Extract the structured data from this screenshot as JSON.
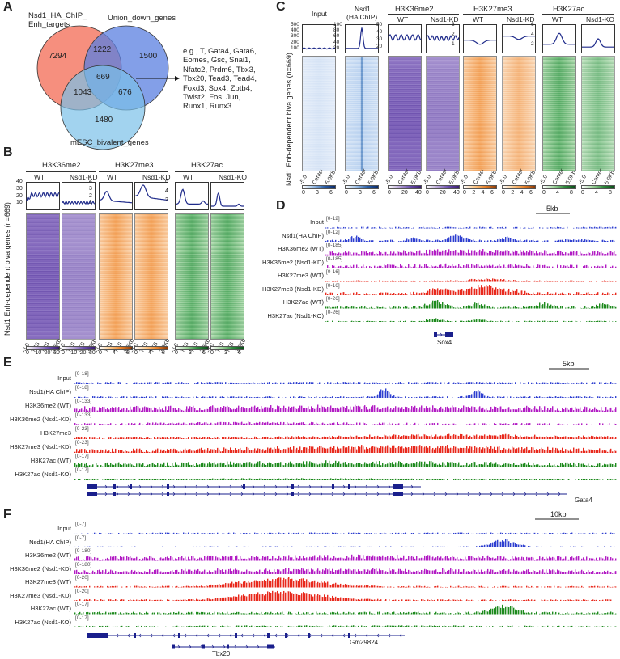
{
  "panels": {
    "A": {
      "letter": "A",
      "set_labels": [
        "Nsd1_HA_ChIP_\nEnh_targets",
        "Union_down_genes",
        "mESC_bivalent_genes"
      ],
      "counts": [
        "7294",
        "1222",
        "1500",
        "669",
        "1043",
        "676",
        "1480"
      ],
      "genes_text": "e.g., T, Gata4, Gata6,\nEomes, Gsc, Snai1,\nNfatc2, Prdm6, Tbx3,\nTbx20, Tead3, Tead4,\nFoxd3, Sox4, Zbtb4,\nTwist2, Fos, Jun,\nRunx1, Runx3"
    },
    "B": {
      "letter": "B",
      "ylabel": "Nsd1 Enh-dependent biva genes (n=669)",
      "groups": [
        {
          "title": "H3K36me2",
          "conds": [
            "WT",
            "Nsd1-KD"
          ],
          "color": "purple",
          "yticks": [
            "40",
            "30",
            "20",
            "10"
          ],
          "cbar": [
            "0",
            "10",
            "20",
            "30"
          ]
        },
        {
          "title": "H3K27me3",
          "conds": [
            "WT",
            "Nsd1-KD"
          ],
          "color": "orange",
          "yticks": [
            "4",
            "3",
            "2",
            "1"
          ],
          "cbar": [
            "0",
            "4",
            "8"
          ]
        },
        {
          "title": "H3K27ac",
          "conds": [
            "WT",
            "Nsd1-KO"
          ],
          "color": "green",
          "yticks": [
            "6",
            "4",
            "2"
          ],
          "cbar": [
            "0",
            "3",
            "6"
          ]
        }
      ],
      "xticks": [
        "-3.0",
        "TSS",
        "TES",
        "3.0Kb"
      ]
    },
    "C": {
      "letter": "C",
      "ylabel": "Nsd1 Enh-dependent biva genes (n=669)",
      "columns": [
        {
          "title": "Input",
          "sub": "",
          "color": "input",
          "yticks": [
            "500",
            "400",
            "300",
            "200",
            "100"
          ],
          "cbar": [
            "0",
            "3",
            "6"
          ]
        },
        {
          "title": "Nsd1",
          "sub": "(HA ChIP)",
          "color": "blue",
          "yticks": [
            "100",
            "80",
            "60",
            "40",
            "20"
          ],
          "cbar": [
            "0",
            "3",
            "6"
          ]
        },
        {
          "title": "WT",
          "sub": "",
          "color": "purple",
          "yticks": [
            "50",
            "40",
            "30",
            "20"
          ],
          "cbar": [
            "0",
            "20",
            "40"
          ]
        },
        {
          "title": "Nsd1-KD",
          "sub": "",
          "color": "purple",
          "yticks": [
            "",
            "",
            "",
            ""
          ],
          "cbar": [
            "0",
            "20",
            "40"
          ]
        },
        {
          "title": "WT",
          "sub": "",
          "color": "orange",
          "yticks": [
            "3",
            "2",
            "1"
          ],
          "cbar": [
            "0",
            "2",
            "4",
            "6"
          ]
        },
        {
          "title": "Nsd1-KD",
          "sub": "",
          "color": "orange",
          "yticks": [
            "",
            "",
            ""
          ],
          "cbar": [
            "0",
            "2",
            "4",
            "6"
          ]
        },
        {
          "title": "WT",
          "sub": "",
          "color": "green",
          "yticks": [
            "6",
            "4",
            "2"
          ],
          "cbar": [
            "0",
            "4",
            "8"
          ]
        },
        {
          "title": "Nsd1-KO",
          "sub": "",
          "color": "green",
          "yticks": [
            "",
            "",
            ""
          ],
          "cbar": [
            "0",
            "4",
            "8"
          ]
        }
      ],
      "group_titles": [
        "H3K36me2",
        "H3K27me3",
        "H3K27ac"
      ],
      "xticks": [
        "-5.0",
        "Center",
        "5.0Kb"
      ]
    },
    "D": {
      "letter": "D",
      "scale": "5kb",
      "tracks": [
        {
          "label": "Input",
          "range": "[0-12]",
          "color": "#2e3fd0"
        },
        {
          "label": "Nsd1(HA ChIP)",
          "range": "[0-12]",
          "color": "#2e3fd0"
        },
        {
          "label": "H3K36me2 (WT)",
          "range": "[0-185]",
          "color": "#b21cc4"
        },
        {
          "label": "H3K36me2 (Nsd1-KD)",
          "range": "[0-185]",
          "color": "#b21cc4"
        },
        {
          "label": "H3K27me3 (WT)",
          "range": "[0-16]",
          "color": "#e8291c"
        },
        {
          "label": "H3K27me3 (Nsd1-KD)",
          "range": "[0-16]",
          "color": "#e8291c"
        },
        {
          "label": "H3K27ac (WT)",
          "range": "[0-26]",
          "color": "#1d8a1d"
        },
        {
          "label": "H3K27ac (Nsd1-KO)",
          "range": "[0-26]",
          "color": "#1d8a1d"
        }
      ],
      "gene": "Sox4"
    },
    "E": {
      "letter": "E",
      "scale": "5kb",
      "tracks": [
        {
          "label": "Input",
          "range": "[0-18]",
          "color": "#2e3fd0"
        },
        {
          "label": "Nsd1(HA ChIP)",
          "range": "[0-18]",
          "color": "#2e3fd0"
        },
        {
          "label": "H3K36me2 (WT)",
          "range": "[0-133]",
          "color": "#b21cc4"
        },
        {
          "label": "H3K36me2 (Nsd1-KD)",
          "range": "[0-133]",
          "color": "#b21cc4"
        },
        {
          "label": "H3K27me3",
          "range": "[0-23]",
          "color": "#e8291c"
        },
        {
          "label": "H3K27me3 (Nsd1-KD)",
          "range": "[0-23]",
          "color": "#e8291c"
        },
        {
          "label": "H3K27ac (WT)",
          "range": "[0-17]",
          "color": "#1d8a1d"
        },
        {
          "label": "H3K27ac (Nsd1-KO)",
          "range": "[0-17]",
          "color": "#1d8a1d"
        }
      ],
      "gene": "Gata4"
    },
    "F": {
      "letter": "F",
      "scale": "10kb",
      "tracks": [
        {
          "label": "Input",
          "range": "[0-7]",
          "color": "#2e3fd0"
        },
        {
          "label": "Nsd1(HA ChIP)",
          "range": "[0-7]",
          "color": "#2e3fd0"
        },
        {
          "label": "H3K36me2 (WT)",
          "range": "[0-180]",
          "color": "#b21cc4"
        },
        {
          "label": "H3K36me2 (Nsd1-KD)",
          "range": "[0-180]",
          "color": "#b21cc4"
        },
        {
          "label": "H3K27me3 (WT)",
          "range": "[0-20]",
          "color": "#e8291c"
        },
        {
          "label": "H3K27me3 (Nsd1-KD)",
          "range": "[0-20]",
          "color": "#e8291c"
        },
        {
          "label": "H3K27ac (WT)",
          "range": "[0-17]",
          "color": "#1d8a1d"
        },
        {
          "label": "H3K27ac (Nsd1-KO)",
          "range": "[0-17]",
          "color": "#1d8a1d"
        }
      ],
      "gene": "Tbx20",
      "gene2": "Gm29824"
    }
  },
  "colors": {
    "purple": "#6a4fae",
    "orange": "#e8822a",
    "green": "#2e8a3c",
    "blue": "#2a5fa8",
    "input": "#6a8fd8",
    "profile": "#1e2a8a"
  }
}
